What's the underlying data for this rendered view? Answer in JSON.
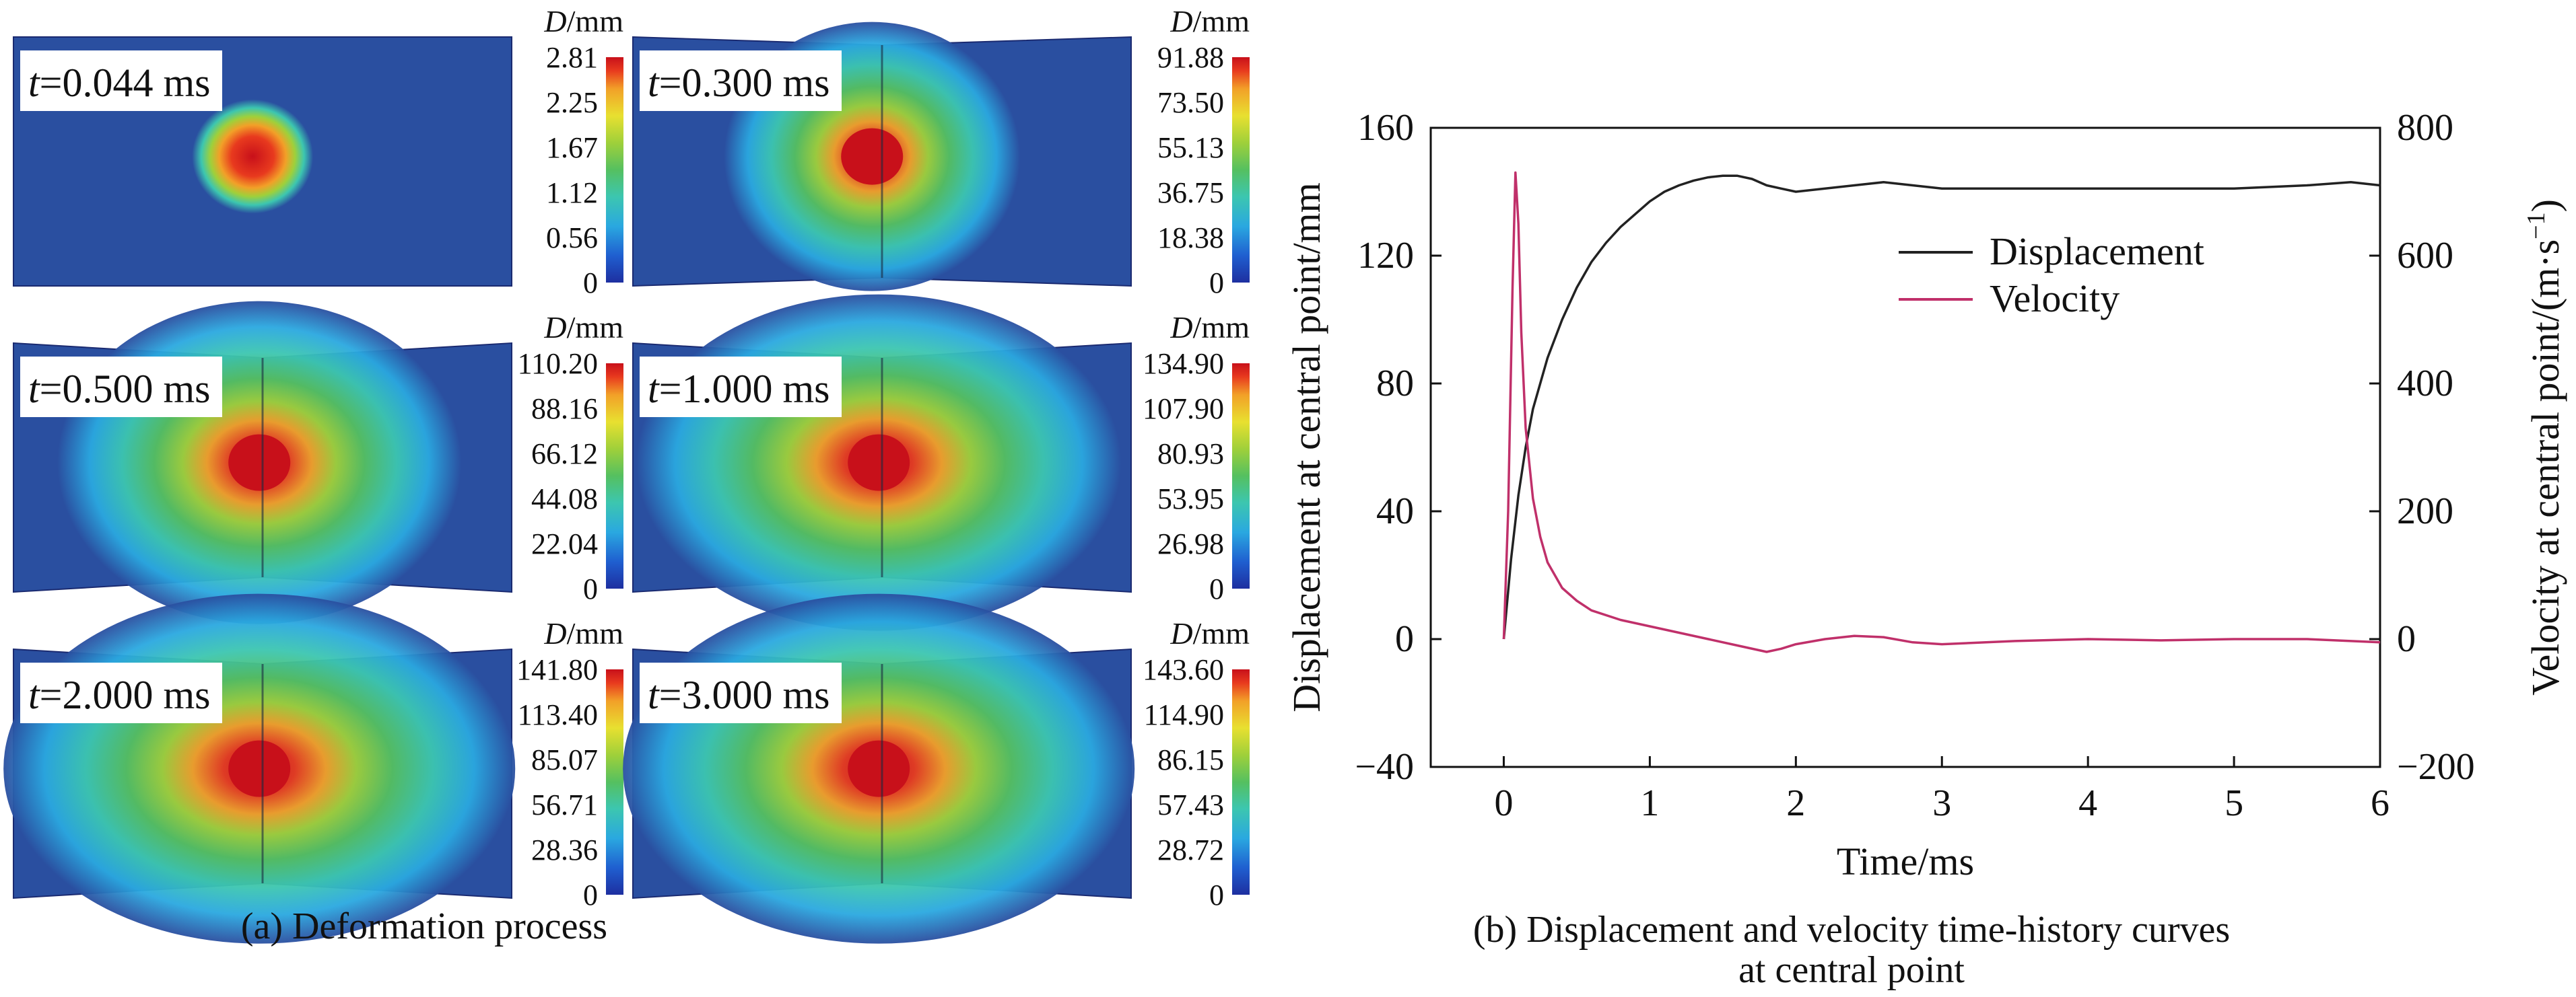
{
  "panel_a": {
    "caption": "(a) Deformation process",
    "colorbar_title_var": "D",
    "colorbar_title_unit": "/mm",
    "colormap": [
      "#1e2fa0",
      "#1f5fd0",
      "#2aa8e0",
      "#3cc6b0",
      "#55c060",
      "#9fd03a",
      "#e8e030",
      "#f2a028",
      "#e83a1e",
      "#c8101a"
    ],
    "background_color": "#2a4fa0",
    "frames": [
      {
        "time_var": "t",
        "time_text": "=0.044 ms",
        "scale": [
          "2.81",
          "2.25",
          "1.67",
          "1.12",
          "0.56",
          "0"
        ]
      },
      {
        "time_var": "t",
        "time_text": "=0.300 ms",
        "scale": [
          "91.88",
          "73.50",
          "55.13",
          "36.75",
          "18.38",
          "0"
        ]
      },
      {
        "time_var": "t",
        "time_text": "=0.500 ms",
        "scale": [
          "110.20",
          "88.16",
          "66.12",
          "44.08",
          "22.04",
          "0"
        ]
      },
      {
        "time_var": "t",
        "time_text": "=1.000 ms",
        "scale": [
          "134.90",
          "107.90",
          "80.93",
          "53.95",
          "26.98",
          "0"
        ]
      },
      {
        "time_var": "t",
        "time_text": "=2.000 ms",
        "scale": [
          "141.80",
          "113.40",
          "85.07",
          "56.71",
          "28.36",
          "0"
        ]
      },
      {
        "time_var": "t",
        "time_text": "=3.000 ms",
        "scale": [
          "143.60",
          "114.90",
          "86.15",
          "57.43",
          "28.72",
          "0"
        ]
      }
    ]
  },
  "chart_data": {
    "type": "line",
    "caption_line1": "(b) Displacement and velocity time-history curves",
    "caption_line2": "at central point",
    "xlabel": "Time/ms",
    "ylabel_left": "Displacement at central point/mm",
    "ylabel_right_main": "Velocity at central point/(m·s",
    "ylabel_right_sup": "−1",
    "ylabel_right_end": ")",
    "xlim": [
      -0.5,
      6
    ],
    "ylim_left": [
      -40,
      160
    ],
    "ylim_right": [
      -200,
      800
    ],
    "x_ticks": [
      "0",
      "1",
      "2",
      "3",
      "4",
      "5",
      "6"
    ],
    "y_left_ticks": [
      "−40",
      "0",
      "40",
      "80",
      "120",
      "160"
    ],
    "y_right_ticks": [
      "−200",
      "0",
      "200",
      "400",
      "600",
      "800"
    ],
    "grid": false,
    "legend_position": "upper-right",
    "series": [
      {
        "name": "Displacement",
        "axis": "left",
        "color": "#222222",
        "x": [
          0,
          0.05,
          0.1,
          0.15,
          0.2,
          0.3,
          0.4,
          0.5,
          0.6,
          0.7,
          0.8,
          0.9,
          1.0,
          1.1,
          1.2,
          1.3,
          1.4,
          1.5,
          1.6,
          1.7,
          1.8,
          1.9,
          2.0,
          2.2,
          2.4,
          2.6,
          2.8,
          3.0,
          3.5,
          4.0,
          4.5,
          5.0,
          5.5,
          5.8,
          6.0
        ],
        "y": [
          0,
          25,
          45,
          60,
          72,
          88,
          100,
          110,
          118,
          124,
          129,
          133,
          137,
          140,
          142,
          143.5,
          144.5,
          145,
          145,
          144,
          142,
          141,
          140,
          141,
          142,
          143,
          142,
          141,
          141,
          141,
          141,
          141,
          142,
          143,
          142
        ]
      },
      {
        "name": "Velocity",
        "axis": "right",
        "color": "#c0306a",
        "x": [
          0,
          0.03,
          0.06,
          0.08,
          0.1,
          0.12,
          0.15,
          0.2,
          0.25,
          0.3,
          0.4,
          0.5,
          0.6,
          0.8,
          1.0,
          1.2,
          1.4,
          1.6,
          1.8,
          1.9,
          2.0,
          2.2,
          2.4,
          2.6,
          2.8,
          3.0,
          3.5,
          4.0,
          4.5,
          5.0,
          5.5,
          6.0
        ],
        "y": [
          0,
          200,
          550,
          730,
          650,
          480,
          330,
          220,
          160,
          120,
          80,
          60,
          45,
          30,
          20,
          10,
          0,
          -10,
          -20,
          -15,
          -8,
          0,
          5,
          3,
          -5,
          -8,
          -3,
          0,
          -2,
          0,
          0,
          -5
        ]
      }
    ]
  }
}
